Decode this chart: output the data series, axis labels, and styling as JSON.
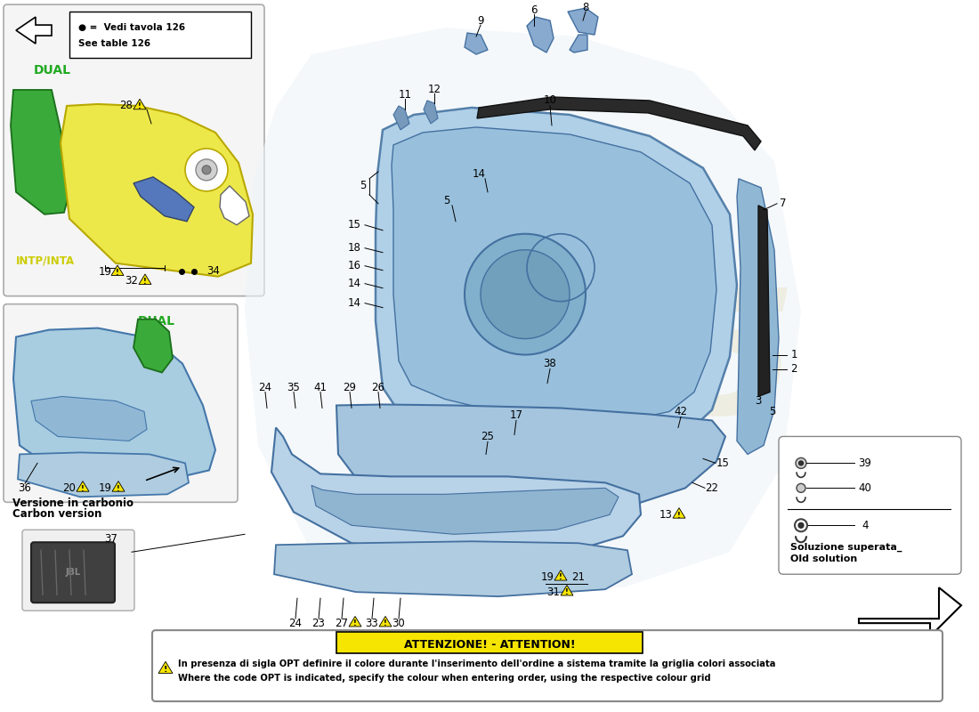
{
  "bg_color": "#ffffff",
  "legend_box_text_it": "Vedi tavola 126",
  "legend_box_text_en": "See table 126",
  "attention_title": "ATTENZIONE! - ATTENTION!",
  "attention_text_it": "In presenza di sigla OPT definire il colore durante l'inserimento dell'ordine a sistema tramite la griglia colori associata",
  "attention_text_en": "Where the code OPT is indicated, specify the colour when entering order, using the respective colour grid",
  "dual_color": "#22aa22",
  "warning_yellow": "#f5e500",
  "yellow_part": "#ede84a",
  "blue_part": "#a8cce0",
  "blue_part_dark": "#7aaac8",
  "blue_part_light": "#c8dff0",
  "green_part": "#3aaa3a",
  "gray_dark": "#333333",
  "gray_medium": "#888888",
  "line_color": "#222222",
  "watermark_85": "#d4c070",
  "watermark_text": "#c8a850",
  "solution_text_it": "Soluzione superata",
  "solution_text_en": "Old solution",
  "carbon_text_it": "Versione in carbonio",
  "carbon_text_en": "Carbon version",
  "intp_color": "#cccc00"
}
